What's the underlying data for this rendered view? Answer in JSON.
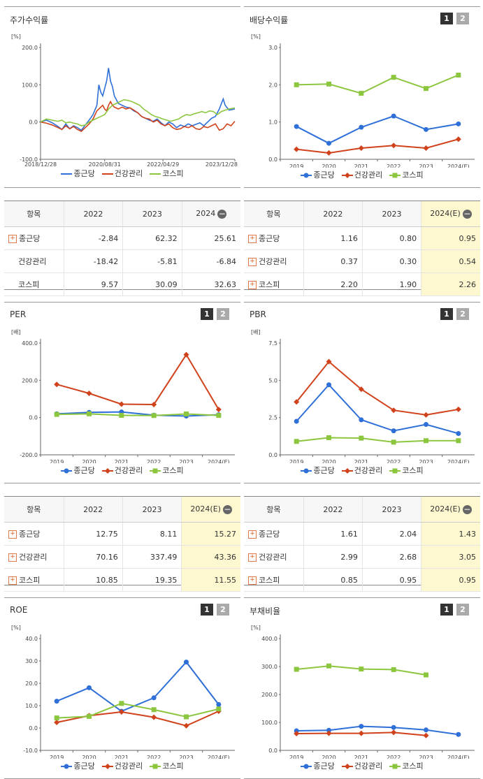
{
  "colors": {
    "s1": "#2e6fd8",
    "s2": "#d0421b",
    "s3": "#8cc63f"
  },
  "series_names": [
    "종근당",
    "건강관리",
    "코스피"
  ],
  "chart_data": [
    {
      "id": "stock",
      "type": "line",
      "title": "주가수익률",
      "unit": "[%]",
      "ylim": [
        -100,
        200
      ],
      "yticks": [
        "200.0",
        "100.0",
        "0.0",
        "-100.0"
      ],
      "xticks": [
        "2018/12/28",
        "2020/08/31",
        "2022/04/29",
        "2023/12/28"
      ],
      "x_range": [
        0,
        100
      ],
      "xtick_pos": [
        0,
        33,
        63,
        100
      ],
      "series": [
        {
          "name": "종근당",
          "points": [
            [
              0,
              0
            ],
            [
              3,
              5
            ],
            [
              6,
              -2
            ],
            [
              9,
              -12
            ],
            [
              11,
              -20
            ],
            [
              13,
              -5
            ],
            [
              15,
              -18
            ],
            [
              17,
              -10
            ],
            [
              19,
              -15
            ],
            [
              21,
              -22
            ],
            [
              23,
              -8
            ],
            [
              25,
              5
            ],
            [
              27,
              20
            ],
            [
              29,
              45
            ],
            [
              30,
              100
            ],
            [
              31,
              80
            ],
            [
              32,
              70
            ],
            [
              33,
              90
            ],
            [
              34,
              110
            ],
            [
              35,
              145
            ],
            [
              36,
              110
            ],
            [
              37,
              95
            ],
            [
              38,
              70
            ],
            [
              40,
              50
            ],
            [
              42,
              45
            ],
            [
              44,
              40
            ],
            [
              46,
              38
            ],
            [
              48,
              30
            ],
            [
              50,
              25
            ],
            [
              52,
              15
            ],
            [
              54,
              10
            ],
            [
              56,
              5
            ],
            [
              58,
              2
            ],
            [
              60,
              8
            ],
            [
              62,
              -2
            ],
            [
              64,
              -10
            ],
            [
              66,
              0
            ],
            [
              68,
              -5
            ],
            [
              70,
              -15
            ],
            [
              72,
              -8
            ],
            [
              74,
              -12
            ],
            [
              76,
              -5
            ],
            [
              78,
              -10
            ],
            [
              80,
              -6
            ],
            [
              82,
              -2
            ],
            [
              84,
              -10
            ],
            [
              86,
              0
            ],
            [
              88,
              10
            ],
            [
              90,
              15
            ],
            [
              92,
              35
            ],
            [
              94,
              62
            ],
            [
              95,
              45
            ],
            [
              97,
              32
            ],
            [
              100,
              35
            ]
          ]
        },
        {
          "name": "건강관리",
          "points": [
            [
              0,
              0
            ],
            [
              3,
              -3
            ],
            [
              6,
              -8
            ],
            [
              9,
              -15
            ],
            [
              11,
              -20
            ],
            [
              13,
              -10
            ],
            [
              15,
              -18
            ],
            [
              17,
              -12
            ],
            [
              19,
              -20
            ],
            [
              21,
              -25
            ],
            [
              23,
              -15
            ],
            [
              25,
              -5
            ],
            [
              27,
              8
            ],
            [
              29,
              30
            ],
            [
              31,
              40
            ],
            [
              32,
              45
            ],
            [
              33,
              35
            ],
            [
              34,
              30
            ],
            [
              35,
              45
            ],
            [
              36,
              55
            ],
            [
              37,
              45
            ],
            [
              38,
              40
            ],
            [
              40,
              35
            ],
            [
              42,
              40
            ],
            [
              44,
              35
            ],
            [
              46,
              38
            ],
            [
              48,
              32
            ],
            [
              50,
              25
            ],
            [
              52,
              15
            ],
            [
              54,
              10
            ],
            [
              56,
              8
            ],
            [
              58,
              0
            ],
            [
              60,
              5
            ],
            [
              62,
              -5
            ],
            [
              64,
              -10
            ],
            [
              66,
              -5
            ],
            [
              68,
              -15
            ],
            [
              70,
              -20
            ],
            [
              72,
              -18
            ],
            [
              74,
              -12
            ],
            [
              76,
              -15
            ],
            [
              78,
              -10
            ],
            [
              80,
              -18
            ],
            [
              82,
              -20
            ],
            [
              84,
              -12
            ],
            [
              86,
              -15
            ],
            [
              88,
              -10
            ],
            [
              90,
              -5
            ],
            [
              92,
              -22
            ],
            [
              94,
              -18
            ],
            [
              96,
              -5
            ],
            [
              98,
              -10
            ],
            [
              100,
              2
            ]
          ]
        },
        {
          "name": "코스피",
          "points": [
            [
              0,
              0
            ],
            [
              3,
              8
            ],
            [
              6,
              5
            ],
            [
              9,
              2
            ],
            [
              11,
              5
            ],
            [
              13,
              -2
            ],
            [
              15,
              0
            ],
            [
              17,
              -3
            ],
            [
              19,
              -5
            ],
            [
              21,
              -10
            ],
            [
              23,
              -8
            ],
            [
              25,
              0
            ],
            [
              27,
              5
            ],
            [
              29,
              10
            ],
            [
              31,
              15
            ],
            [
              33,
              20
            ],
            [
              35,
              35
            ],
            [
              37,
              45
            ],
            [
              39,
              50
            ],
            [
              41,
              55
            ],
            [
              43,
              60
            ],
            [
              45,
              58
            ],
            [
              47,
              55
            ],
            [
              49,
              50
            ],
            [
              51,
              45
            ],
            [
              53,
              35
            ],
            [
              55,
              28
            ],
            [
              57,
              20
            ],
            [
              59,
              15
            ],
            [
              61,
              12
            ],
            [
              63,
              8
            ],
            [
              65,
              5
            ],
            [
              67,
              2
            ],
            [
              69,
              5
            ],
            [
              71,
              8
            ],
            [
              73,
              15
            ],
            [
              75,
              20
            ],
            [
              77,
              18
            ],
            [
              79,
              22
            ],
            [
              81,
              25
            ],
            [
              83,
              28
            ],
            [
              85,
              25
            ],
            [
              87,
              30
            ],
            [
              89,
              28
            ],
            [
              91,
              20
            ],
            [
              93,
              28
            ],
            [
              95,
              32
            ],
            [
              97,
              35
            ],
            [
              100,
              38
            ]
          ]
        }
      ]
    },
    {
      "id": "dividend",
      "type": "line",
      "title": "배당수익률",
      "unit": "[%]",
      "ylim": [
        0,
        3
      ],
      "yticks": [
        "3.0",
        "2.0",
        "1.0",
        "0.0"
      ],
      "categories": [
        "2019",
        "2020",
        "2021",
        "2022",
        "2023",
        "2024(E)"
      ],
      "series": [
        {
          "name": "종근당",
          "values": [
            0.88,
            0.43,
            0.86,
            1.16,
            0.8,
            0.95
          ]
        },
        {
          "name": "건강관리",
          "values": [
            0.27,
            0.17,
            0.3,
            0.37,
            0.3,
            0.54
          ]
        },
        {
          "name": "코스피",
          "values": [
            2.0,
            2.02,
            1.77,
            2.2,
            1.9,
            2.26
          ]
        }
      ]
    },
    {
      "id": "per",
      "type": "line",
      "title": "PER",
      "unit": "[배]",
      "ylim": [
        -200,
        400
      ],
      "yticks": [
        "400.0",
        "200.0",
        "0.0",
        "-200.0"
      ],
      "categories": [
        "2019",
        "2020",
        "2021",
        "2022",
        "2023",
        "2024(E)"
      ],
      "series": [
        {
          "name": "종근당",
          "values": [
            20,
            28,
            30,
            12.75,
            8.11,
            15.27
          ]
        },
        {
          "name": "건강관리",
          "values": [
            178,
            130,
            72,
            70.16,
            337.49,
            43.36
          ]
        },
        {
          "name": "코스피",
          "values": [
            17,
            20,
            12,
            10.85,
            19.35,
            11.55
          ]
        }
      ]
    },
    {
      "id": "pbr",
      "type": "line",
      "title": "PBR",
      "unit": "[배]",
      "ylim": [
        0,
        7.5
      ],
      "yticks": [
        "7.5",
        "5.0",
        "2.5",
        "0.0"
      ],
      "categories": [
        "2019",
        "2020",
        "2021",
        "2022",
        "2023",
        "2024(E)"
      ],
      "series": [
        {
          "name": "종근당",
          "values": [
            2.25,
            4.7,
            2.35,
            1.61,
            2.04,
            1.43
          ]
        },
        {
          "name": "건강관리",
          "values": [
            3.55,
            6.25,
            4.4,
            2.99,
            2.68,
            3.05
          ]
        },
        {
          "name": "코스피",
          "values": [
            0.9,
            1.15,
            1.12,
            0.85,
            0.95,
            0.95
          ]
        }
      ]
    },
    {
      "id": "roe",
      "type": "line",
      "title": "ROE",
      "unit": "[%]",
      "ylim": [
        -10,
        40
      ],
      "yticks": [
        "40.0",
        "30.0",
        "20.0",
        "10.0",
        "0.0",
        "-10.0"
      ],
      "categories": [
        "2019",
        "2020",
        "2021",
        "2022",
        "2023",
        "2024(E)"
      ],
      "series": [
        {
          "name": "종근당",
          "values": [
            12.0,
            18.0,
            7.5,
            13.5,
            29.5,
            10.5
          ]
        },
        {
          "name": "건강관리",
          "values": [
            2.5,
            5.5,
            7.2,
            4.8,
            1.0,
            7.5
          ]
        },
        {
          "name": "코스피",
          "values": [
            4.5,
            5.2,
            11.0,
            8.2,
            5.0,
            8.5
          ]
        }
      ]
    },
    {
      "id": "debt",
      "type": "line",
      "title": "부채비율",
      "unit": "[%]",
      "ylim": [
        0,
        400
      ],
      "yticks": [
        "400.0",
        "300.0",
        "200.0",
        "100.0",
        "0.0"
      ],
      "categories": [
        "2019",
        "2020",
        "2021",
        "2022",
        "2023",
        "2024(E)"
      ],
      "series": [
        {
          "name": "종근당",
          "values": [
            70,
            72,
            86,
            82,
            73,
            57
          ]
        },
        {
          "name": "건강관리",
          "values": [
            60,
            61,
            61,
            64,
            53,
            null
          ]
        },
        {
          "name": "코스피",
          "values": [
            290,
            302,
            291,
            289,
            270,
            null
          ]
        }
      ]
    }
  ],
  "tables": [
    {
      "id": "t-stock",
      "header": [
        "항목",
        "2022",
        "2023",
        "2024"
      ],
      "rows": [
        {
          "name": "종근당",
          "plus": true,
          "values": [
            "-2.84",
            "62.32",
            "25.61"
          ]
        },
        {
          "name": "건강관리",
          "plus": false,
          "values": [
            "-18.42",
            "-5.81",
            "-6.84"
          ]
        },
        {
          "name": "코스피",
          "plus": false,
          "values": [
            "9.57",
            "30.09",
            "32.63"
          ]
        }
      ]
    },
    {
      "id": "t-dividend",
      "header": [
        "항목",
        "2022",
        "2023",
        "2024(E)"
      ],
      "rows": [
        {
          "name": "종근당",
          "plus": true,
          "values": [
            "1.16",
            "0.80",
            "0.95"
          ]
        },
        {
          "name": "건강관리",
          "plus": true,
          "values": [
            "0.37",
            "0.30",
            "0.54"
          ]
        },
        {
          "name": "코스피",
          "plus": true,
          "values": [
            "2.20",
            "1.90",
            "2.26"
          ]
        }
      ]
    },
    {
      "id": "t-per",
      "header": [
        "항목",
        "2022",
        "2023",
        "2024(E)"
      ],
      "rows": [
        {
          "name": "종근당",
          "plus": true,
          "values": [
            "12.75",
            "8.11",
            "15.27"
          ]
        },
        {
          "name": "건강관리",
          "plus": true,
          "values": [
            "70.16",
            "337.49",
            "43.36"
          ]
        },
        {
          "name": "코스피",
          "plus": true,
          "values": [
            "10.85",
            "19.35",
            "11.55"
          ]
        }
      ]
    },
    {
      "id": "t-pbr",
      "header": [
        "항목",
        "2022",
        "2023",
        "2024(E)"
      ],
      "rows": [
        {
          "name": "종근당",
          "plus": true,
          "values": [
            "1.61",
            "2.04",
            "1.43"
          ]
        },
        {
          "name": "건강관리",
          "plus": true,
          "values": [
            "2.99",
            "2.68",
            "3.05"
          ]
        },
        {
          "name": "코스피",
          "plus": true,
          "values": [
            "0.85",
            "0.95",
            "0.95"
          ]
        }
      ]
    }
  ],
  "switch_labels": [
    "1",
    "2"
  ],
  "minus_symbol": "−",
  "plus_symbol": "+"
}
